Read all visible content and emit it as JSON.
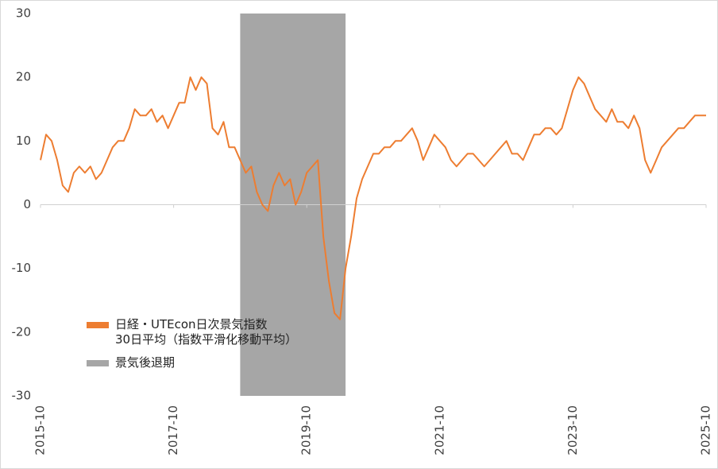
{
  "chart_data": {
    "type": "line",
    "x": [
      "2015-10",
      "2015-11",
      "2015-12",
      "2016-01",
      "2016-02",
      "2016-03",
      "2016-04",
      "2016-05",
      "2016-06",
      "2016-07",
      "2016-08",
      "2016-09",
      "2016-10",
      "2016-11",
      "2016-12",
      "2017-01",
      "2017-02",
      "2017-03",
      "2017-04",
      "2017-05",
      "2017-06",
      "2017-07",
      "2017-08",
      "2017-09",
      "2017-10",
      "2017-11",
      "2017-12",
      "2018-01",
      "2018-02",
      "2018-03",
      "2018-04",
      "2018-05",
      "2018-06",
      "2018-07",
      "2018-08",
      "2018-09",
      "2018-10",
      "2018-11",
      "2018-12",
      "2019-01",
      "2019-02",
      "2019-03",
      "2019-04",
      "2019-05",
      "2019-06",
      "2019-07",
      "2019-08",
      "2019-09",
      "2019-10",
      "2019-11",
      "2019-12",
      "2020-01",
      "2020-02",
      "2020-03",
      "2020-04",
      "2020-05",
      "2020-06",
      "2020-07",
      "2020-08",
      "2020-09",
      "2020-10",
      "2020-11",
      "2020-12",
      "2021-01",
      "2021-02",
      "2021-03",
      "2021-04",
      "2021-05",
      "2021-06",
      "2021-07",
      "2021-08",
      "2021-09",
      "2021-10",
      "2021-11",
      "2021-12",
      "2022-01",
      "2022-02",
      "2022-03",
      "2022-04",
      "2022-05",
      "2022-06",
      "2022-07",
      "2022-08",
      "2022-09",
      "2022-10",
      "2022-11",
      "2022-12",
      "2023-01",
      "2023-02",
      "2023-03",
      "2023-04",
      "2023-05",
      "2023-06",
      "2023-07",
      "2023-08",
      "2023-09",
      "2023-10",
      "2023-11",
      "2023-12",
      "2024-01",
      "2024-02",
      "2024-03",
      "2024-04",
      "2024-05",
      "2024-06",
      "2024-07",
      "2024-08",
      "2024-09",
      "2024-10",
      "2024-11",
      "2024-12",
      "2025-01",
      "2025-02",
      "2025-03",
      "2025-04",
      "2025-05",
      "2025-06",
      "2025-07",
      "2025-08",
      "2025-09",
      "2025-10"
    ],
    "series": [
      {
        "name": "日経・UTEcon日次景気指数\n30日平均（指数平滑化移動平均）",
        "color": "#ed7d31",
        "values": [
          7,
          11,
          10,
          7,
          3,
          2,
          5,
          6,
          5,
          6,
          4,
          5,
          7,
          9,
          10,
          10,
          12,
          15,
          14,
          14,
          15,
          13,
          14,
          12,
          14,
          16,
          16,
          20,
          18,
          20,
          19,
          12,
          11,
          13,
          9,
          9,
          7,
          5,
          6,
          2,
          0,
          -1,
          3,
          5,
          3,
          4,
          0,
          2,
          5,
          6,
          7,
          -5,
          -12,
          -17,
          -18,
          -10,
          -5,
          1,
          4,
          6,
          8,
          8,
          9,
          9,
          10,
          10,
          11,
          12,
          10,
          7,
          9,
          11,
          10,
          9,
          7,
          6,
          7,
          8,
          8,
          7,
          6,
          7,
          8,
          9,
          10,
          8,
          8,
          7,
          9,
          11,
          11,
          12,
          12,
          11,
          12,
          15,
          18,
          20,
          19,
          17,
          15,
          14,
          13,
          15,
          13,
          13,
          12,
          14,
          12,
          7,
          5,
          7,
          9,
          10,
          11,
          12,
          12,
          13,
          14,
          14,
          14
        ]
      }
    ],
    "bands": [
      {
        "name": "景気後退期",
        "start": "2018-10",
        "end": "2020-05",
        "color": "#a6a6a6"
      }
    ],
    "xticks": [
      "2015-10",
      "2017-10",
      "2019-10",
      "2021-10",
      "2023-10",
      "2025-10"
    ],
    "ylim": [
      -30,
      30
    ],
    "yticks": [
      -30,
      -20,
      -10,
      0,
      10,
      20,
      30
    ],
    "legend_position": "lower left"
  }
}
